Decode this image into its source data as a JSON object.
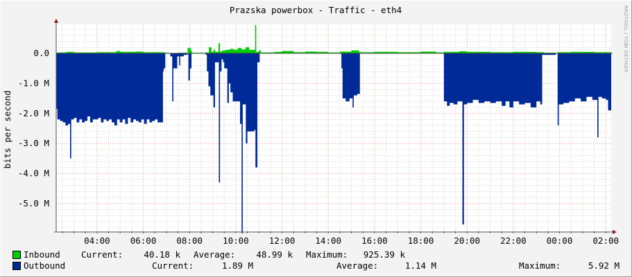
{
  "title": "Prazska powerbox - Traffic - eth4",
  "watermark": "RRDTOOL / TOBI OETIKER",
  "chart_data": {
    "type": "area",
    "title": "Prazska powerbox - Traffic - eth4",
    "ylabel": "bits per second",
    "xlabel": "",
    "xlim": [
      "02:14",
      "02:14"
    ],
    "ylim": [
      -5.95,
      0.97
    ],
    "y_unit": "M",
    "grid": true,
    "x_ticks": [
      "04:00",
      "06:00",
      "08:00",
      "10:00",
      "12:00",
      "14:00",
      "16:00",
      "18:00",
      "20:00",
      "22:00",
      "00:00",
      "02:00"
    ],
    "y_ticks": [
      {
        "value": 0,
        "label": "0.0"
      },
      {
        "value": -1,
        "label": "-1.0 M"
      },
      {
        "value": -2,
        "label": "-2.0 M"
      },
      {
        "value": -3,
        "label": "-3.0 M"
      },
      {
        "value": -4,
        "label": "-4.0 M"
      },
      {
        "value": -5,
        "label": "-5.0 M"
      }
    ],
    "series": [
      {
        "name": "Inbound",
        "color": "#00cc00",
        "points": [
          [
            "02:14",
            0.03
          ],
          [
            "02:40",
            0.05
          ],
          [
            "03:00",
            0.03
          ],
          [
            "04:00",
            0.04
          ],
          [
            "04:50",
            0.08
          ],
          [
            "05:00",
            0.05
          ],
          [
            "05:40",
            0.06
          ],
          [
            "06:00",
            0.04
          ],
          [
            "06:55",
            0.02
          ],
          [
            "07:10",
            0.01
          ],
          [
            "07:30",
            0.02
          ],
          [
            "07:55",
            0.18
          ],
          [
            "08:03",
            0.1
          ],
          [
            "08:06",
            0.02
          ],
          [
            "08:40",
            0.03
          ],
          [
            "08:50",
            0.2
          ],
          [
            "08:57",
            0.05
          ],
          [
            "09:02",
            0.12
          ],
          [
            "09:06",
            0.05
          ],
          [
            "09:15",
            0.34
          ],
          [
            "09:19",
            0.06
          ],
          [
            "09:25",
            0.1
          ],
          [
            "09:35",
            0.12
          ],
          [
            "09:45",
            0.15
          ],
          [
            "09:55",
            0.12
          ],
          [
            "10:05",
            0.18
          ],
          [
            "10:15",
            0.13
          ],
          [
            "10:25",
            0.2
          ],
          [
            "10:35",
            0.12
          ],
          [
            "10:50",
            0.94
          ],
          [
            "10:53",
            0.05
          ],
          [
            "11:00",
            0.1
          ],
          [
            "11:05",
            0.03
          ],
          [
            "11:40",
            0.05
          ],
          [
            "12:00",
            0.08
          ],
          [
            "12:30",
            0.04
          ],
          [
            "13:00",
            0.06
          ],
          [
            "13:30",
            0.05
          ],
          [
            "14:00",
            0.03
          ],
          [
            "14:30",
            0.06
          ],
          [
            "15:00",
            0.1
          ],
          [
            "15:20",
            0.04
          ],
          [
            "16:00",
            0.05
          ],
          [
            "17:00",
            0.04
          ],
          [
            "18:00",
            0.06
          ],
          [
            "18:40",
            0.03
          ],
          [
            "19:00",
            0.05
          ],
          [
            "19:40",
            0.07
          ],
          [
            "20:00",
            0.05
          ],
          [
            "21:00",
            0.04
          ],
          [
            "22:00",
            0.05
          ],
          [
            "23:00",
            0.04
          ],
          [
            "23:20",
            0.02
          ],
          [
            "23:55",
            0.04
          ],
          [
            "00:30",
            0.05
          ],
          [
            "01:30",
            0.04
          ],
          [
            "02:10",
            0.04
          ]
        ]
      },
      {
        "name": "Outbound",
        "color": "#002a97",
        "points": [
          [
            "02:14",
            -1.85
          ],
          [
            "02:17",
            -2.2
          ],
          [
            "02:24",
            -2.25
          ],
          [
            "02:31",
            -2.3
          ],
          [
            "02:38",
            -2.4
          ],
          [
            "02:45",
            -2.35
          ],
          [
            "02:50",
            -3.5
          ],
          [
            "02:53",
            -2.2
          ],
          [
            "03:00",
            -2.15
          ],
          [
            "03:07",
            -2.3
          ],
          [
            "03:14",
            -2.2
          ],
          [
            "03:21",
            -2.3
          ],
          [
            "03:28",
            -2.25
          ],
          [
            "03:35",
            -2.1
          ],
          [
            "03:42",
            -2.3
          ],
          [
            "03:49",
            -2.2
          ],
          [
            "03:56",
            -2.2
          ],
          [
            "04:03",
            -2.15
          ],
          [
            "04:10",
            -2.3
          ],
          [
            "04:17",
            -2.2
          ],
          [
            "04:24",
            -2.25
          ],
          [
            "04:31",
            -2.2
          ],
          [
            "04:38",
            -2.3
          ],
          [
            "04:45",
            -2.4
          ],
          [
            "04:52",
            -2.2
          ],
          [
            "04:59",
            -2.3
          ],
          [
            "05:06",
            -2.2
          ],
          [
            "05:13",
            -2.35
          ],
          [
            "05:20",
            -2.15
          ],
          [
            "05:27",
            -2.3
          ],
          [
            "05:34",
            -2.2
          ],
          [
            "05:41",
            -2.25
          ],
          [
            "05:48",
            -2.3
          ],
          [
            "05:55",
            -2.2
          ],
          [
            "06:02",
            -2.35
          ],
          [
            "06:09",
            -2.2
          ],
          [
            "06:16",
            -2.3
          ],
          [
            "06:23",
            -2.25
          ],
          [
            "06:30",
            -2.2
          ],
          [
            "06:37",
            -2.3
          ],
          [
            "06:44",
            -2.3
          ],
          [
            "06:51",
            -0.6
          ],
          [
            "06:53",
            -0.5
          ],
          [
            "06:57",
            0
          ],
          [
            "07:10",
            -0.1
          ],
          [
            "07:15",
            -1.6
          ],
          [
            "07:18",
            -0.5
          ],
          [
            "07:24",
            -0.5
          ],
          [
            "07:28",
            -0.1
          ],
          [
            "07:33",
            -0.4
          ],
          [
            "07:36",
            -0.1
          ],
          [
            "07:45",
            -0.05
          ],
          [
            "07:55",
            0
          ],
          [
            "07:57",
            -0.9
          ],
          [
            "08:01",
            -0.5
          ],
          [
            "08:05",
            0
          ],
          [
            "08:42",
            -0.05
          ],
          [
            "08:45",
            -0.6
          ],
          [
            "08:49",
            -1.1
          ],
          [
            "08:54",
            -1.4
          ],
          [
            "09:02",
            -1.8
          ],
          [
            "09:06",
            -0.3
          ],
          [
            "09:12",
            -0.3
          ],
          [
            "09:16",
            -4.3
          ],
          [
            "09:19",
            -0.6
          ],
          [
            "09:23",
            -0.2
          ],
          [
            "09:27",
            -0.3
          ],
          [
            "09:30",
            -0.5
          ],
          [
            "09:38",
            -1.65
          ],
          [
            "09:42",
            -1.0
          ],
          [
            "09:46",
            -1.3
          ],
          [
            "09:52",
            -1.6
          ],
          [
            "10:00",
            -1.6
          ],
          [
            "10:08",
            -1.6
          ],
          [
            "10:11",
            -2.35
          ],
          [
            "10:15",
            -6.0
          ],
          [
            "10:18",
            -1.7
          ],
          [
            "10:26",
            -3.0
          ],
          [
            "10:30",
            -2.6
          ],
          [
            "10:40",
            -2.6
          ],
          [
            "10:48",
            -2.55
          ],
          [
            "10:51",
            -3.8
          ],
          [
            "10:56",
            -0.3
          ],
          [
            "11:02",
            0
          ],
          [
            "14:34",
            -0.5
          ],
          [
            "14:37",
            -1.5
          ],
          [
            "14:45",
            -1.6
          ],
          [
            "14:55",
            -1.5
          ],
          [
            "15:03",
            -1.8
          ],
          [
            "15:06",
            -1.4
          ],
          [
            "15:15",
            -1.35
          ],
          [
            "15:22",
            0
          ],
          [
            "19:00",
            -1.6
          ],
          [
            "19:08",
            -1.75
          ],
          [
            "19:15",
            -1.65
          ],
          [
            "19:25",
            -1.7
          ],
          [
            "19:35",
            -1.6
          ],
          [
            "19:48",
            -5.7
          ],
          [
            "19:52",
            -1.7
          ],
          [
            "20:00",
            -1.65
          ],
          [
            "20:15",
            -1.55
          ],
          [
            "20:30",
            -1.65
          ],
          [
            "20:45",
            -1.6
          ],
          [
            "21:00",
            -1.65
          ],
          [
            "21:15",
            -1.6
          ],
          [
            "21:30",
            -1.75
          ],
          [
            "21:40",
            -1.6
          ],
          [
            "21:50",
            -1.8
          ],
          [
            "22:00",
            -1.6
          ],
          [
            "22:15",
            -1.7
          ],
          [
            "22:30",
            -1.65
          ],
          [
            "22:45",
            -1.8
          ],
          [
            "23:00",
            -1.6
          ],
          [
            "23:10",
            -1.7
          ],
          [
            "23:15",
            -0.05
          ],
          [
            "23:50",
            0
          ],
          [
            "23:55",
            -2.4
          ],
          [
            "23:58",
            -1.7
          ],
          [
            "00:10",
            -1.65
          ],
          [
            "00:25",
            -1.6
          ],
          [
            "00:40",
            -1.5
          ],
          [
            "00:55",
            -1.6
          ],
          [
            "01:10",
            -1.45
          ],
          [
            "01:25",
            -1.55
          ],
          [
            "01:38",
            -2.8
          ],
          [
            "01:41",
            -1.45
          ],
          [
            "01:50",
            -1.5
          ],
          [
            "02:00",
            -1.55
          ],
          [
            "02:06",
            -1.9
          ]
        ]
      }
    ]
  },
  "legend": {
    "inbound": {
      "label": "Inbound",
      "current_label": "Current:",
      "current": "40.18 k",
      "average_label": "Average:",
      "average": "48.99 k",
      "maximum_label": "Maximum:",
      "maximum": "925.39 k",
      "color": "#00cc00"
    },
    "outbound": {
      "label": "Outbound",
      "current_label": "Current:",
      "current": "1.89 M",
      "average_label": "Average:",
      "average": "1.14 M",
      "maximum_label": "Maximum:",
      "maximum": "5.92 M",
      "color": "#002a97"
    }
  }
}
